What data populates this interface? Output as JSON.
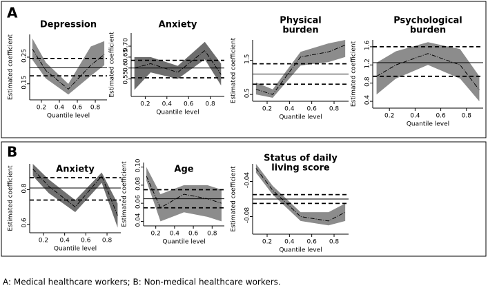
{
  "panel_labels": [
    "A",
    "B"
  ],
  "caption": "A: Medical healthcare workers; B: Non-medical healthcare workers.",
  "chart_data": [
    {
      "type": "quantile",
      "title": [
        "Depression"
      ],
      "xlabel": "Quantile level",
      "ylabel": "Estimated coefficient",
      "band_color": "#8c8c8c",
      "x": [
        0.1,
        0.25,
        0.5,
        0.75,
        0.9
      ],
      "estimate": [
        0.28,
        0.2,
        0.13,
        0.22,
        0.26
      ],
      "lower": [
        0.24,
        0.17,
        0.11,
        0.18,
        0.22
      ],
      "upper": [
        0.32,
        0.23,
        0.15,
        0.29,
        0.31
      ],
      "ols": 0.21,
      "ols_ci": [
        0.18,
        0.245
      ],
      "xlim": [
        0.07,
        0.93
      ],
      "xticks": [
        0.2,
        0.4,
        0.6,
        0.8
      ],
      "ylim": [
        0.09,
        0.335
      ],
      "yticks": [
        0.15,
        0.25
      ]
    },
    {
      "type": "quantile",
      "title": [
        "Anxiety"
      ],
      "xlabel": "Quantile level",
      "ylabel": "Estimated coefficient",
      "band_color": "#6e6e6e",
      "x": [
        0.1,
        0.25,
        0.5,
        0.75,
        0.9
      ],
      "estimate": [
        0.6,
        0.62,
        0.58,
        0.68,
        0.57
      ],
      "lower": [
        0.5,
        0.58,
        0.55,
        0.64,
        0.52
      ],
      "upper": [
        0.65,
        0.65,
        0.61,
        0.72,
        0.62
      ],
      "ols": 0.6,
      "ols_ci": [
        0.555,
        0.635
      ],
      "xlim": [
        0.07,
        0.93
      ],
      "xticks": [
        0.2,
        0.4,
        0.6,
        0.8
      ],
      "ylim": [
        0.47,
        0.76
      ],
      "yticks": [
        0.55,
        0.6,
        0.65,
        {
          "value": 0.7,
          "label": "0.70"
        }
      ]
    },
    {
      "type": "quantile",
      "title": [
        "Physical",
        "burden"
      ],
      "xlabel": "Quantile level",
      "ylabel": "Estimated coefficient",
      "band_color": "#8c8c8c",
      "x": [
        0.1,
        0.25,
        0.5,
        0.75,
        0.9
      ],
      "estimate": [
        0.65,
        0.5,
        1.6,
        1.75,
        1.95
      ],
      "lower": [
        0.5,
        0.4,
        1.35,
        1.45,
        1.6
      ],
      "upper": [
        0.85,
        0.65,
        1.75,
        2.0,
        2.1
      ],
      "ols": 1.1,
      "ols_ci": [
        0.8,
        1.4
      ],
      "xlim": [
        0.07,
        0.93
      ],
      "xticks": [
        0.2,
        0.4,
        0.6,
        0.8
      ],
      "ylim": [
        0.3,
        2.1
      ],
      "yticks": [
        0.5,
        1.5
      ]
    },
    {
      "type": "quantile",
      "title": [
        "Psychological",
        "burden"
      ],
      "xlabel": "Quantile level",
      "ylabel": "Estimated coefficient",
      "band_color": "#8c8c8c",
      "x": [
        0.1,
        0.25,
        0.5,
        0.75,
        0.9
      ],
      "estimate": [
        0.95,
        1.2,
        1.45,
        1.2,
        0.65
      ],
      "lower": [
        0.55,
        0.9,
        1.2,
        0.9,
        0.4
      ],
      "upper": [
        1.25,
        1.5,
        1.7,
        1.55,
        0.95
      ],
      "ols": 1.25,
      "ols_ci": [
        0.95,
        1.6
      ],
      "xlim": [
        0.07,
        0.93
      ],
      "xticks": [
        0.2,
        0.4,
        0.6,
        0.8
      ],
      "ylim": [
        0.25,
        1.75
      ],
      "yticks": [
        0.4,
        0.8,
        1.2,
        1.6
      ]
    },
    {
      "type": "quantile",
      "title": [
        "Anxiety"
      ],
      "xlabel": "Quantile level",
      "ylabel": "Estimated coefficient",
      "band_color": "#707070",
      "x": [
        0.1,
        0.25,
        0.5,
        0.75,
        0.9
      ],
      "estimate": [
        0.92,
        0.82,
        0.7,
        0.88,
        0.65
      ],
      "lower": [
        0.88,
        0.78,
        0.67,
        0.84,
        0.58
      ],
      "upper": [
        0.95,
        0.86,
        0.74,
        0.9,
        0.72
      ],
      "ols": 0.81,
      "ols_ci": [
        0.74,
        0.87
      ],
      "xlim": [
        0.07,
        0.93
      ],
      "xticks": [
        0.2,
        0.4,
        0.6,
        0.8
      ],
      "ylim": [
        0.55,
        0.95
      ],
      "yticks": [
        0.6,
        0.8
      ]
    },
    {
      "type": "quantile",
      "title": [
        "Age"
      ],
      "xlabel": "Quantile level",
      "ylabel": "Estimated coefficient",
      "band_color": "#8c8c8c",
      "x": [
        0.1,
        0.25,
        0.5,
        0.75,
        0.9
      ],
      "estimate": [
        0.09,
        0.055,
        0.07,
        0.065,
        0.06
      ],
      "lower": [
        0.085,
        0.04,
        0.05,
        0.045,
        0.04
      ],
      "upper": [
        0.1,
        0.07,
        0.08,
        0.08,
        0.075
      ],
      "ols": 0.065,
      "ols_ci": [
        0.055,
        0.075
      ],
      "xlim": [
        0.07,
        0.93
      ],
      "xticks": [
        0.2,
        0.4,
        0.6,
        0.8
      ],
      "ylim": [
        0.035,
        0.105
      ],
      "yticks": [
        0.04,
        0.06,
        0.08,
        {
          "value": 0.1,
          "label": "0.10"
        }
      ]
    },
    {
      "type": "quantile",
      "title": [
        "Status of daily",
        "living score"
      ],
      "xlabel": "Quantile level",
      "ylabel": "Estimated coefficient",
      "band_color": "#8c8c8c",
      "x": [
        0.1,
        0.25,
        0.5,
        0.75,
        0.9
      ],
      "estimate": [
        -0.025,
        -0.05,
        -0.08,
        -0.085,
        -0.075
      ],
      "lower": [
        -0.03,
        -0.055,
        -0.085,
        -0.09,
        -0.085
      ],
      "upper": [
        -0.02,
        -0.045,
        -0.075,
        -0.075,
        -0.065
      ],
      "ols": -0.06,
      "ols_ci": [
        -0.065,
        -0.055
      ],
      "xlim": [
        0.07,
        0.93
      ],
      "xticks": [
        0.2,
        0.4,
        0.6,
        0.8
      ],
      "ylim": [
        -0.1,
        -0.02
      ],
      "yticks": [
        -0.08,
        -0.04
      ]
    }
  ]
}
